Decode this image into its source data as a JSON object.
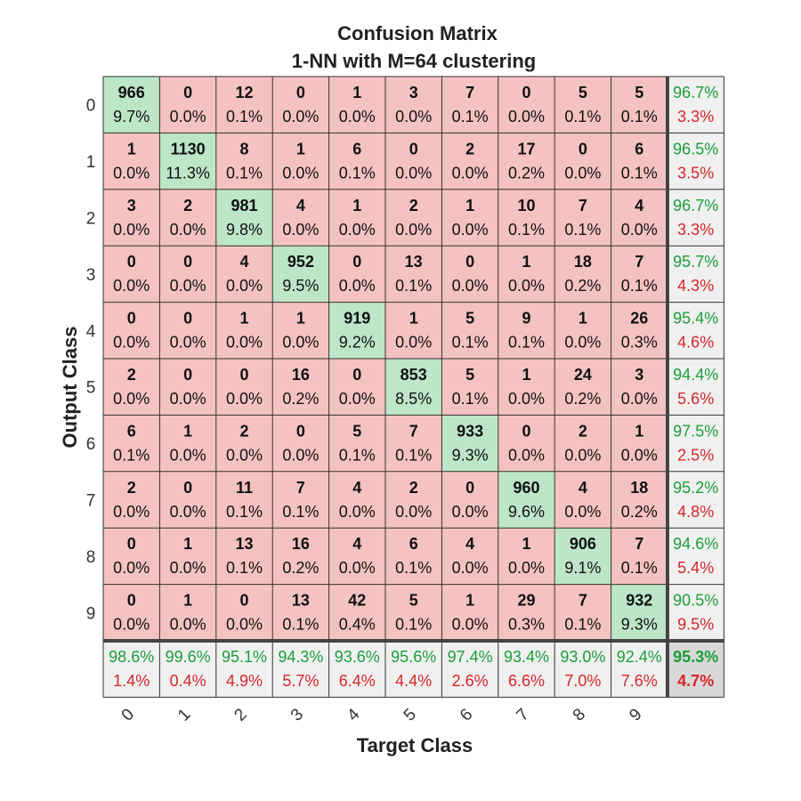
{
  "chart_data": {
    "type": "heatmap",
    "title": "Confusion Matrix",
    "subtitle": "1-NN with M=64 clustering",
    "xlabel": "Target Class",
    "ylabel": "Output Class",
    "row_labels": [
      "0",
      "1",
      "2",
      "3",
      "4",
      "5",
      "6",
      "7",
      "8",
      "9"
    ],
    "col_labels": [
      "0",
      "1",
      "2",
      "3",
      "4",
      "5",
      "6",
      "7",
      "8",
      "9"
    ],
    "counts": [
      [
        966,
        0,
        12,
        0,
        1,
        3,
        7,
        0,
        5,
        5
      ],
      [
        1,
        1130,
        8,
        1,
        6,
        0,
        2,
        17,
        0,
        6
      ],
      [
        3,
        2,
        981,
        4,
        1,
        2,
        1,
        10,
        7,
        4
      ],
      [
        0,
        0,
        4,
        952,
        0,
        13,
        0,
        1,
        18,
        7
      ],
      [
        0,
        0,
        1,
        1,
        919,
        1,
        5,
        9,
        1,
        26
      ],
      [
        2,
        0,
        0,
        16,
        0,
        853,
        5,
        1,
        24,
        3
      ],
      [
        6,
        1,
        2,
        0,
        5,
        7,
        933,
        0,
        2,
        1
      ],
      [
        2,
        0,
        11,
        7,
        4,
        2,
        0,
        960,
        4,
        18
      ],
      [
        0,
        1,
        13,
        16,
        4,
        6,
        4,
        1,
        906,
        7
      ],
      [
        0,
        1,
        0,
        13,
        42,
        5,
        1,
        29,
        7,
        932
      ]
    ],
    "percents": [
      [
        "9.7%",
        "0.0%",
        "0.1%",
        "0.0%",
        "0.0%",
        "0.0%",
        "0.1%",
        "0.0%",
        "0.1%",
        "0.1%"
      ],
      [
        "0.0%",
        "11.3%",
        "0.1%",
        "0.0%",
        "0.1%",
        "0.0%",
        "0.0%",
        "0.2%",
        "0.0%",
        "0.1%"
      ],
      [
        "0.0%",
        "0.0%",
        "9.8%",
        "0.0%",
        "0.0%",
        "0.0%",
        "0.0%",
        "0.1%",
        "0.1%",
        "0.0%"
      ],
      [
        "0.0%",
        "0.0%",
        "0.0%",
        "9.5%",
        "0.0%",
        "0.1%",
        "0.0%",
        "0.0%",
        "0.2%",
        "0.1%"
      ],
      [
        "0.0%",
        "0.0%",
        "0.0%",
        "0.0%",
        "9.2%",
        "0.0%",
        "0.1%",
        "0.1%",
        "0.0%",
        "0.3%"
      ],
      [
        "0.0%",
        "0.0%",
        "0.0%",
        "0.2%",
        "0.0%",
        "8.5%",
        "0.1%",
        "0.0%",
        "0.2%",
        "0.0%"
      ],
      [
        "0.1%",
        "0.0%",
        "0.0%",
        "0.0%",
        "0.1%",
        "0.1%",
        "9.3%",
        "0.0%",
        "0.0%",
        "0.0%"
      ],
      [
        "0.0%",
        "0.0%",
        "0.1%",
        "0.1%",
        "0.0%",
        "0.0%",
        "0.0%",
        "9.6%",
        "0.0%",
        "0.2%"
      ],
      [
        "0.0%",
        "0.0%",
        "0.1%",
        "0.2%",
        "0.0%",
        "0.1%",
        "0.0%",
        "0.0%",
        "9.1%",
        "0.1%"
      ],
      [
        "0.0%",
        "0.0%",
        "0.0%",
        "0.1%",
        "0.4%",
        "0.1%",
        "0.0%",
        "0.3%",
        "0.1%",
        "9.3%"
      ]
    ],
    "row_summary": [
      [
        "96.7%",
        "3.3%"
      ],
      [
        "96.5%",
        "3.5%"
      ],
      [
        "96.7%",
        "3.3%"
      ],
      [
        "95.7%",
        "4.3%"
      ],
      [
        "95.4%",
        "4.6%"
      ],
      [
        "94.4%",
        "5.6%"
      ],
      [
        "97.5%",
        "2.5%"
      ],
      [
        "95.2%",
        "4.8%"
      ],
      [
        "94.6%",
        "5.4%"
      ],
      [
        "90.5%",
        "9.5%"
      ]
    ],
    "col_summary": [
      [
        "98.6%",
        "1.4%"
      ],
      [
        "99.6%",
        "0.4%"
      ],
      [
        "95.1%",
        "4.9%"
      ],
      [
        "94.3%",
        "5.7%"
      ],
      [
        "93.6%",
        "6.4%"
      ],
      [
        "95.6%",
        "4.4%"
      ],
      [
        "97.4%",
        "2.6%"
      ],
      [
        "93.4%",
        "6.6%"
      ],
      [
        "93.0%",
        "7.0%"
      ],
      [
        "92.4%",
        "7.6%"
      ]
    ],
    "overall": [
      "95.3%",
      "4.7%"
    ],
    "colors": {
      "diagonal": "#bde5c8",
      "off_diagonal": "#f4c2c1",
      "summary": "#f0f0f0",
      "overall": "#d8d8d8",
      "correct_text": "#1a9e3a",
      "error_text": "#d6262a",
      "grid": "#333333"
    }
  }
}
